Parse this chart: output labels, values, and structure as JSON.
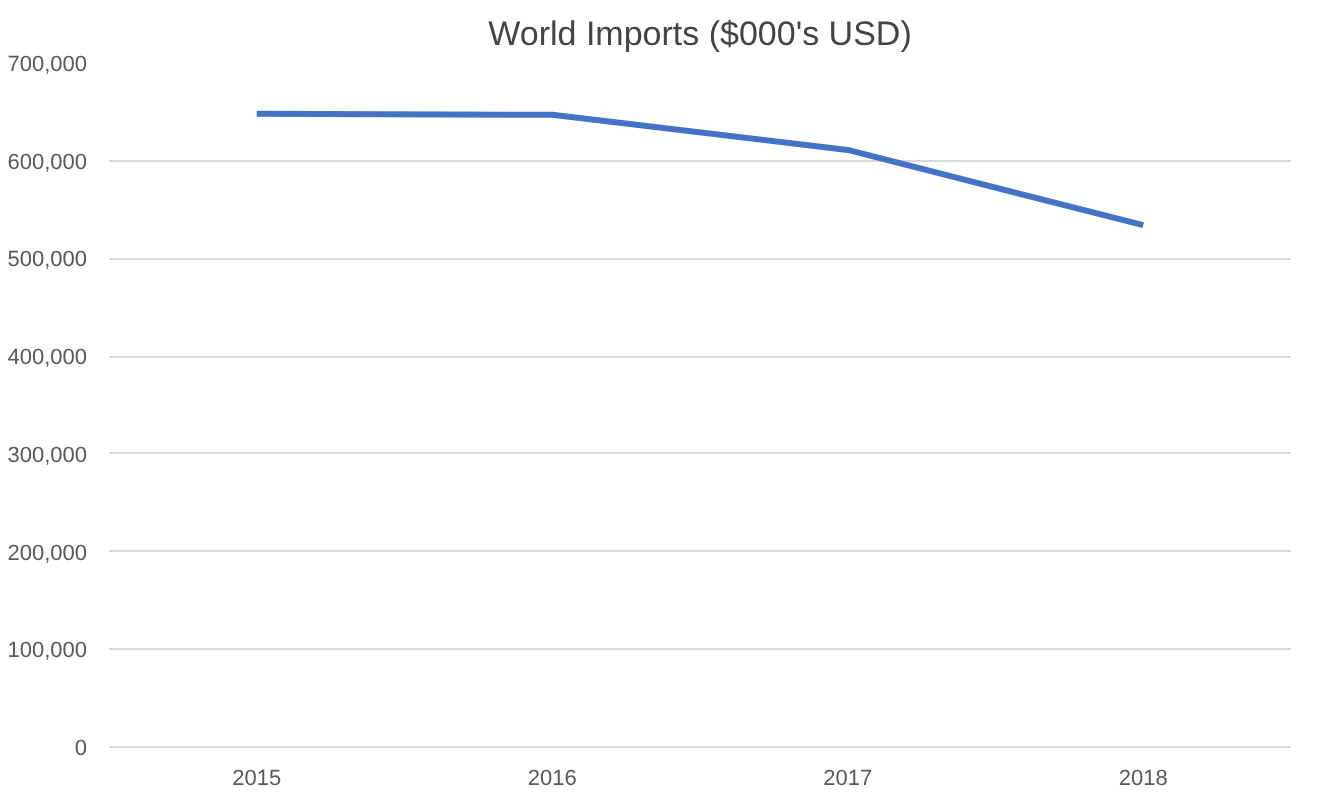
{
  "chart_data": {
    "type": "line",
    "title": "World Imports ($000's USD)",
    "categories": [
      "2015",
      "2016",
      "2017",
      "2018"
    ],
    "series": [
      {
        "color": "#4472c4",
        "values": [
          648000,
          647000,
          611000,
          534000
        ]
      }
    ],
    "ylim": [
      0,
      700000
    ],
    "yticks": [
      {
        "value": 0,
        "label": "0"
      },
      {
        "value": 100000,
        "label": "100,000"
      },
      {
        "value": 200000,
        "label": "200,000"
      },
      {
        "value": 300000,
        "label": "300,000"
      },
      {
        "value": 400000,
        "label": "400,000"
      },
      {
        "value": 500000,
        "label": "500,000"
      },
      {
        "value": 600000,
        "label": "600,000"
      },
      {
        "value": 700000,
        "label": "700,000"
      }
    ],
    "grid": "y",
    "marker": "none",
    "line_style": "solid"
  }
}
